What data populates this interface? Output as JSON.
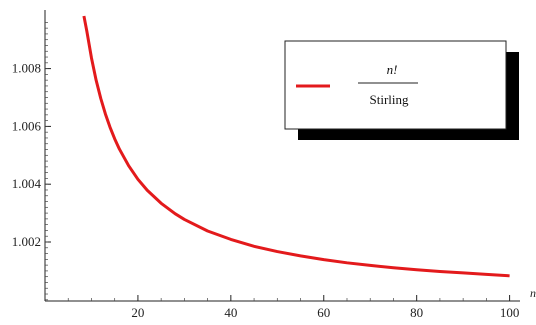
{
  "chart_data": {
    "type": "line",
    "xlabel": "n",
    "ylabel": "",
    "xlim": [
      0,
      100
    ],
    "ylim": [
      1.0,
      1.0098
    ],
    "xticks": [
      20,
      40,
      60,
      80,
      100
    ],
    "yticks": [
      1.002,
      1.004,
      1.006,
      1.008
    ],
    "xtick_labels": [
      "20",
      "40",
      "60",
      "80",
      "100"
    ],
    "ytick_labels": [
      "1.002",
      "1.004",
      "1.006",
      "1.008"
    ],
    "grid": false,
    "legend_position": "top-right",
    "series": [
      {
        "name_numerator": "n!",
        "name_denominator": "Stirling",
        "color": "#e31a1c",
        "x": [
          8,
          9,
          10,
          11,
          12,
          13,
          14,
          15,
          16,
          18,
          20,
          22,
          25,
          28,
          30,
          35,
          40,
          45,
          50,
          55,
          60,
          65,
          70,
          75,
          80,
          85,
          90,
          95,
          100
        ],
        "y": [
          1.01047,
          1.0093,
          1.00837,
          1.0076,
          1.00697,
          1.00643,
          1.00597,
          1.00557,
          1.00522,
          1.00464,
          1.00417,
          1.00379,
          1.00334,
          1.00298,
          1.00278,
          1.00238,
          1.00209,
          1.00185,
          1.00167,
          1.00152,
          1.00139,
          1.00128,
          1.00119,
          1.00111,
          1.00104,
          1.00098,
          1.00093,
          1.00088,
          1.00083
        ]
      }
    ]
  }
}
